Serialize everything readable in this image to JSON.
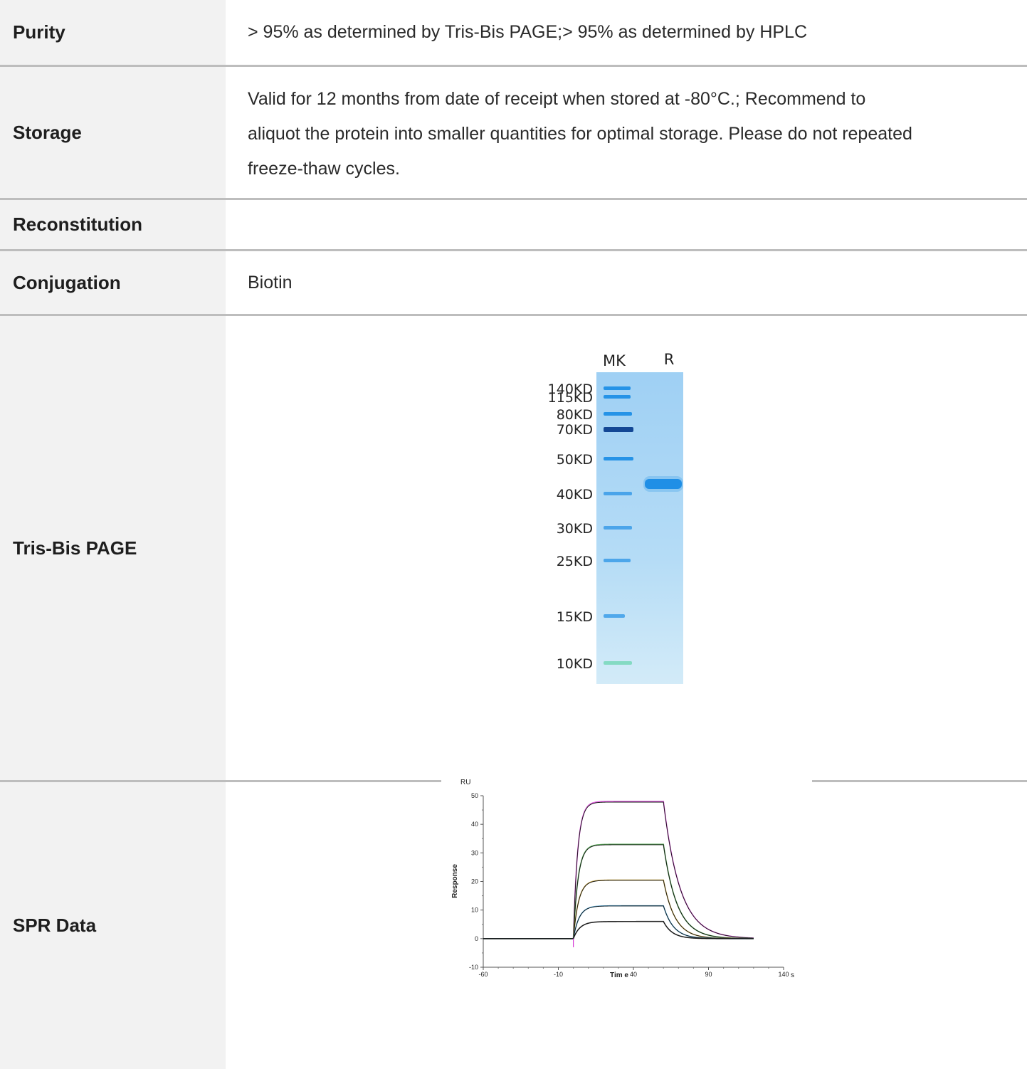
{
  "rows": {
    "purity": {
      "label": "Purity",
      "value": "> 95% as determined by Tris-Bis PAGE;> 95% as determined by HPLC"
    },
    "storage": {
      "label": "Storage",
      "value_lines": [
        "Valid for 12 months from date of receipt when stored at -80°C.; Recommend to",
        "aliquot the protein into smaller quantities for optimal storage. Please do not repeated",
        "freeze-thaw cycles."
      ]
    },
    "reconstitution": {
      "label": "Reconstitution",
      "value": ""
    },
    "conjugation": {
      "label": "Conjugation",
      "value": "Biotin"
    },
    "tris_bis_page": {
      "label": "Tris-Bis PAGE"
    },
    "spr_data": {
      "label": "SPR Data"
    }
  },
  "gel": {
    "lanes": [
      "MK",
      "R"
    ],
    "markers": [
      "140KD",
      "115KD",
      "80KD",
      "70KD",
      "50KD",
      "40KD",
      "30KD",
      "25KD",
      "15KD",
      "10KD"
    ],
    "colors": {
      "gel": "#a9d6f5",
      "band": "#1f8fe6",
      "band_dark": "#0b3f8f",
      "band_green": "#7fd9c0"
    }
  },
  "chart_data": {
    "type": "line",
    "title": "",
    "xlabel": "Tim e",
    "ylabel": "Response",
    "y_unit": "RU",
    "x_unit": "s",
    "xlim": [
      -60,
      140
    ],
    "ylim": [
      -10,
      50
    ],
    "x_ticks": [
      "-60",
      "-10",
      "40",
      "90",
      "140"
    ],
    "y_ticks": [
      "50",
      "40",
      "30",
      "20",
      "10",
      "0",
      "-10"
    ],
    "association_start": 0,
    "dissociation_start": 60,
    "end": 120,
    "series": [
      {
        "plateau": 48
      },
      {
        "plateau": 33
      },
      {
        "plateau": 20.5
      },
      {
        "plateau": 11.5
      },
      {
        "plateau": 6
      }
    ],
    "colors": [
      "#d63cd6",
      "#3a9a3a",
      "#c8a030",
      "#3aa0d8",
      "#222222"
    ]
  }
}
